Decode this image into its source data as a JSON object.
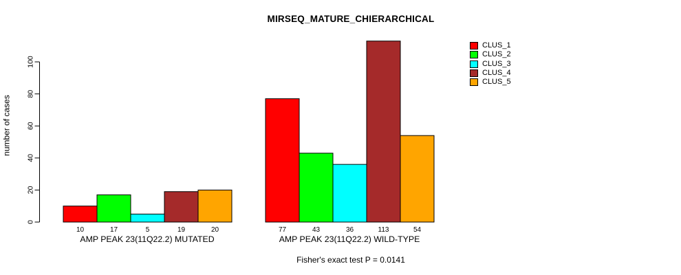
{
  "title": "MIRSEQ_MATURE_CHIERARCHICAL",
  "footnote": "Fisher's exact test P = 0.0141",
  "y_axis": {
    "label": "number of cases"
  },
  "chart_data": {
    "type": "bar",
    "title": "MIRSEQ_MATURE_CHIERARCHICAL",
    "xlabel": "",
    "ylabel": "number of cases",
    "ylim": [
      0,
      100
    ],
    "yticks": [
      0,
      20,
      40,
      60,
      80,
      100
    ],
    "grid": false,
    "legend_position": "right",
    "bar_value_labels_shown": true,
    "annotation": "Fisher's exact test P = 0.0141",
    "bar_border_color": "#000000",
    "text_color": "#000000",
    "background_color": "#ffffff",
    "groups": [
      {
        "label": "AMP PEAK 23(11Q22.2) MUTATED",
        "values": [
          10,
          17,
          5,
          19,
          20
        ]
      },
      {
        "label": "AMP PEAK 23(11Q22.2) WILD-TYPE",
        "values": [
          77,
          43,
          36,
          113,
          54
        ]
      }
    ],
    "series": [
      {
        "name": "CLUS_1",
        "color": "#ff0000"
      },
      {
        "name": "CLUS_2",
        "color": "#00ff00"
      },
      {
        "name": "CLUS_3",
        "color": "#00ffff"
      },
      {
        "name": "CLUS_4",
        "color": "#a52a2a"
      },
      {
        "name": "CLUS_5",
        "color": "#ffa500"
      }
    ]
  }
}
